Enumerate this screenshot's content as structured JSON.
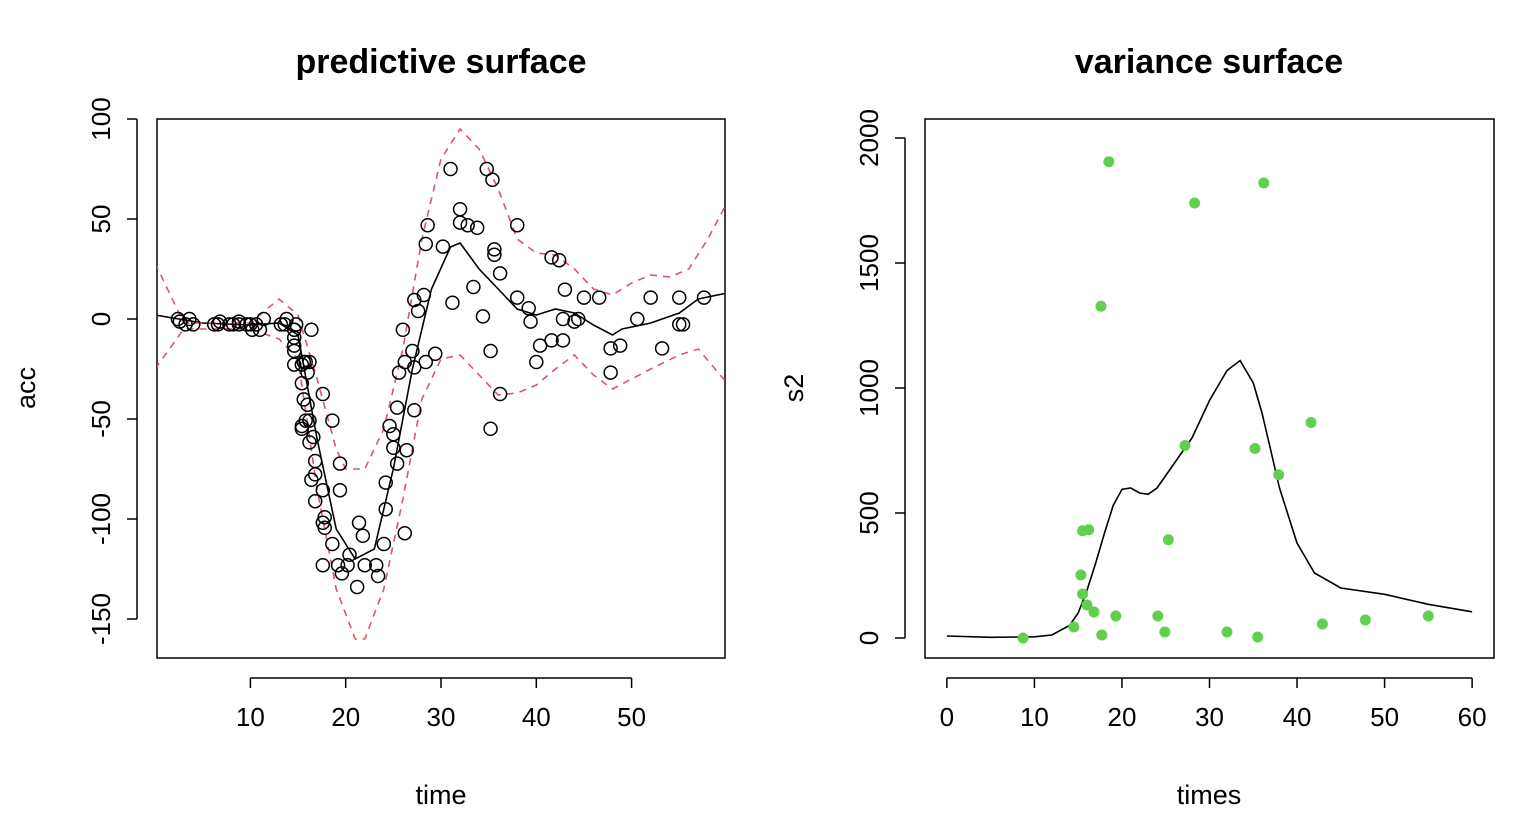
{
  "chart_data": [
    {
      "type": "scatter",
      "title": "predictive surface",
      "xlabel": "time",
      "ylabel": "acc",
      "xlim": [
        0.2,
        59.8
      ],
      "ylim": [
        -169.5,
        100
      ],
      "xticks": [
        10,
        20,
        30,
        40,
        50
      ],
      "yticks": [
        100,
        50,
        0,
        -50,
        -100,
        -150
      ],
      "grid": false,
      "colors": {
        "points": "#000000",
        "mean": "#000000",
        "bands": "#DF536B"
      },
      "points": {
        "x": [
          2.4,
          2.6,
          3.2,
          3.6,
          4.0,
          6.2,
          6.6,
          6.8,
          7.8,
          8.2,
          8.8,
          8.8,
          9.6,
          10.0,
          10.2,
          10.6,
          11.0,
          11.4,
          13.2,
          13.6,
          13.8,
          14.6,
          14.6,
          14.6,
          14.6,
          14.6,
          14.6,
          14.8,
          15.4,
          15.4,
          15.4,
          15.4,
          15.6,
          15.6,
          15.8,
          15.8,
          16.0,
          16.0,
          16.2,
          16.2,
          16.2,
          16.4,
          16.4,
          16.6,
          16.8,
          16.8,
          16.8,
          17.6,
          17.6,
          17.6,
          17.6,
          17.8,
          17.8,
          18.6,
          18.6,
          19.2,
          19.4,
          19.4,
          19.6,
          20.2,
          20.4,
          21.2,
          21.4,
          21.8,
          22.0,
          23.2,
          23.4,
          24.0,
          24.2,
          24.2,
          24.6,
          25.0,
          25.0,
          25.4,
          25.4,
          25.6,
          26.0,
          26.2,
          26.2,
          26.4,
          27.0,
          27.2,
          27.2,
          27.2,
          27.6,
          28.2,
          28.4,
          28.4,
          28.6,
          29.4,
          30.2,
          31.0,
          31.2,
          32.0,
          32.0,
          32.8,
          33.4,
          33.8,
          34.4,
          34.8,
          35.2,
          35.2,
          35.4,
          35.6,
          35.6,
          36.2,
          36.2,
          38.0,
          38.0,
          39.2,
          39.4,
          40.0,
          40.4,
          41.6,
          41.6,
          42.4,
          42.8,
          42.8,
          43.0,
          44.0,
          44.4,
          45.0,
          46.6,
          47.8,
          47.8,
          48.8,
          50.6,
          52.0,
          53.2,
          55.0,
          55.0,
          55.4,
          57.6
        ],
        "y": [
          0.0,
          -1.3,
          -2.7,
          0.0,
          -2.7,
          -2.7,
          -2.7,
          -1.3,
          -2.7,
          -2.7,
          -1.3,
          -2.7,
          -2.7,
          -2.7,
          -5.4,
          -2.7,
          -5.4,
          0.0,
          -2.7,
          -2.7,
          0.0,
          -13.3,
          -5.4,
          -5.4,
          -9.3,
          -16.0,
          -22.8,
          -2.7,
          -22.8,
          -32.1,
          -53.5,
          -54.9,
          -40.2,
          -21.5,
          -21.5,
          -50.8,
          -42.9,
          -26.8,
          -21.5,
          -50.8,
          -61.7,
          -5.4,
          -80.4,
          -59.0,
          -71.0,
          -91.1,
          -77.7,
          -37.5,
          -85.6,
          -123.1,
          -101.9,
          -99.1,
          -104.4,
          -112.5,
          -50.8,
          -123.1,
          -85.6,
          -72.3,
          -127.2,
          -123.1,
          -117.9,
          -134.0,
          -101.9,
          -108.4,
          -123.1,
          -123.1,
          -128.5,
          -112.5,
          -95.1,
          -81.8,
          -53.5,
          -64.4,
          -57.6,
          -72.3,
          -44.3,
          -26.8,
          -5.4,
          -107.1,
          -21.5,
          -65.6,
          -16.0,
          -45.6,
          -24.2,
          9.5,
          4.0,
          12.0,
          -21.5,
          37.5,
          46.9,
          -17.4,
          36.2,
          75.0,
          8.1,
          54.9,
          48.2,
          46.9,
          16.0,
          45.6,
          1.3,
          75.0,
          -16.0,
          -54.9,
          69.6,
          34.8,
          32.1,
          -37.5,
          22.8,
          46.9,
          10.7,
          5.4,
          -1.3,
          -21.5,
          -13.3,
          30.8,
          -10.7,
          29.4,
          0.0,
          -10.7,
          14.7,
          -1.3,
          0.0,
          10.7,
          10.7,
          -26.8,
          -14.7,
          -13.3,
          0.0,
          10.7,
          -14.7,
          -2.7,
          10.7,
          -2.7,
          10.7
        ]
      },
      "mean": {
        "x": [
          0,
          5,
          10,
          13,
          15,
          17,
          19,
          21,
          23,
          25,
          27,
          29,
          31,
          32,
          34,
          36,
          38,
          40,
          42,
          44,
          46,
          48,
          49,
          52,
          55,
          57,
          60
        ],
        "y": [
          2,
          -2,
          -3,
          -2,
          -8,
          -60,
          -105,
          -120,
          -115,
          -75,
          -25,
          15,
          36,
          38,
          25,
          15,
          5,
          2,
          5,
          3,
          -3,
          -8,
          -5,
          -2,
          3,
          10,
          13
        ]
      },
      "upper": {
        "x": [
          0,
          3,
          10,
          13,
          15,
          17,
          19,
          20,
          22,
          24,
          26,
          28,
          30,
          32,
          34,
          36,
          38,
          40,
          42,
          44,
          46,
          48,
          50,
          52,
          54,
          56,
          58,
          60
        ],
        "y": [
          28,
          -2,
          -2,
          10,
          2,
          -30,
          -65,
          -75,
          -75,
          -55,
          -15,
          40,
          80,
          95,
          85,
          65,
          40,
          33,
          32,
          25,
          15,
          12,
          18,
          22,
          21,
          25,
          40,
          58
        ]
      },
      "lower": {
        "x": [
          0,
          3,
          10,
          13,
          15,
          17,
          19,
          21,
          22,
          24,
          26,
          28,
          30,
          32,
          34,
          36,
          38,
          40,
          42,
          44,
          46,
          48,
          50,
          52,
          55,
          57,
          60
        ],
        "y": [
          -25,
          -5,
          -5,
          -10,
          -20,
          -85,
          -135,
          -160,
          -160,
          -135,
          -90,
          -40,
          -20,
          -18,
          -28,
          -38,
          -37,
          -33,
          -25,
          -18,
          -28,
          -35,
          -30,
          -25,
          -18,
          -15,
          -32
        ]
      }
    },
    {
      "type": "scatter",
      "title": "variance surface",
      "xlabel": "times",
      "ylabel": "s2",
      "xlim": [
        -2.5,
        62.5
      ],
      "ylim": [
        -80,
        2076
      ],
      "xticks": [
        0,
        10,
        20,
        30,
        40,
        50,
        60
      ],
      "yticks": [
        0,
        500,
        1000,
        1500,
        2000
      ],
      "grid": false,
      "colors": {
        "points": "#61D04F",
        "curve": "#000000"
      },
      "points": {
        "x": [
          8.7,
          18.5,
          17.6,
          28.3,
          36.2,
          27.2,
          41.6,
          35.2,
          37.9,
          25.3,
          15.5,
          16.2,
          15.3,
          15.5,
          16.0,
          16.8,
          19.3,
          14.5,
          17.7,
          24.1,
          24.9,
          32.0,
          35.5,
          42.9,
          47.8,
          55.0
        ],
        "y": [
          0,
          1905,
          1327,
          1740,
          1820,
          770,
          862,
          758,
          653,
          393,
          429,
          433,
          252,
          176,
          132,
          104,
          88,
          44,
          12,
          88,
          24,
          24,
          4,
          56,
          72,
          88
        ]
      },
      "curve": {
        "x": [
          0,
          5,
          10,
          12,
          14,
          15,
          16,
          17,
          18,
          19,
          20,
          21,
          22,
          23,
          24,
          26,
          28,
          30,
          32,
          33.5,
          35,
          36,
          37,
          38,
          40,
          42,
          45,
          50,
          55,
          60
        ],
        "y": [
          8,
          3,
          5,
          12,
          50,
          100,
          190,
          300,
          420,
          530,
          595,
          600,
          580,
          575,
          600,
          700,
          800,
          950,
          1070,
          1110,
          1020,
          900,
          750,
          600,
          380,
          260,
          200,
          175,
          135,
          105
        ]
      }
    }
  ]
}
